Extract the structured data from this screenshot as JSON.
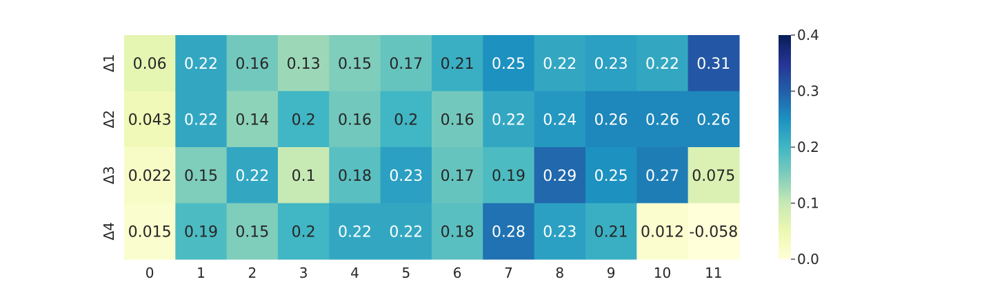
{
  "chart_data": {
    "type": "heatmap",
    "title": "",
    "xlabel": "",
    "ylabel": "",
    "x_categories": [
      "0",
      "1",
      "2",
      "3",
      "4",
      "5",
      "6",
      "7",
      "8",
      "9",
      "10",
      "11"
    ],
    "y_categories": [
      "Δ1",
      "Δ2",
      "Δ3",
      "Δ4"
    ],
    "values": [
      [
        0.06,
        0.22,
        0.16,
        0.13,
        0.15,
        0.17,
        0.21,
        0.25,
        0.22,
        0.23,
        0.22,
        0.31
      ],
      [
        0.043,
        0.22,
        0.14,
        0.2,
        0.16,
        0.2,
        0.16,
        0.22,
        0.24,
        0.26,
        0.26,
        0.26
      ],
      [
        0.022,
        0.15,
        0.22,
        0.1,
        0.18,
        0.23,
        0.17,
        0.19,
        0.29,
        0.25,
        0.27,
        0.075
      ],
      [
        0.015,
        0.19,
        0.15,
        0.2,
        0.22,
        0.22,
        0.18,
        0.28,
        0.23,
        0.21,
        0.012,
        -0.058
      ]
    ],
    "value_labels": [
      [
        "0.06",
        "0.22",
        "0.16",
        "0.13",
        "0.15",
        "0.17",
        "0.21",
        "0.25",
        "0.22",
        "0.23",
        "0.22",
        "0.31"
      ],
      [
        "0.043",
        "0.22",
        "0.14",
        "0.2",
        "0.16",
        "0.2",
        "0.16",
        "0.22",
        "0.24",
        "0.26",
        "0.26",
        "0.26"
      ],
      [
        "0.022",
        "0.15",
        "0.22",
        "0.1",
        "0.18",
        "0.23",
        "0.17",
        "0.19",
        "0.29",
        "0.25",
        "0.27",
        "0.075"
      ],
      [
        "0.015",
        "0.19",
        "0.15",
        "0.2",
        "0.22",
        "0.22",
        "0.18",
        "0.28",
        "0.23",
        "0.21",
        "0.012",
        "-0.058"
      ]
    ],
    "colormap": "YlGnBu",
    "colorbar": {
      "range": [
        0.0,
        0.4
      ],
      "ticks": [
        "0.0",
        "0.1",
        "0.2",
        "0.3",
        "0.4"
      ],
      "tick_values": [
        0.0,
        0.1,
        0.2,
        0.3,
        0.4
      ]
    },
    "annotations": true,
    "grid": false
  }
}
